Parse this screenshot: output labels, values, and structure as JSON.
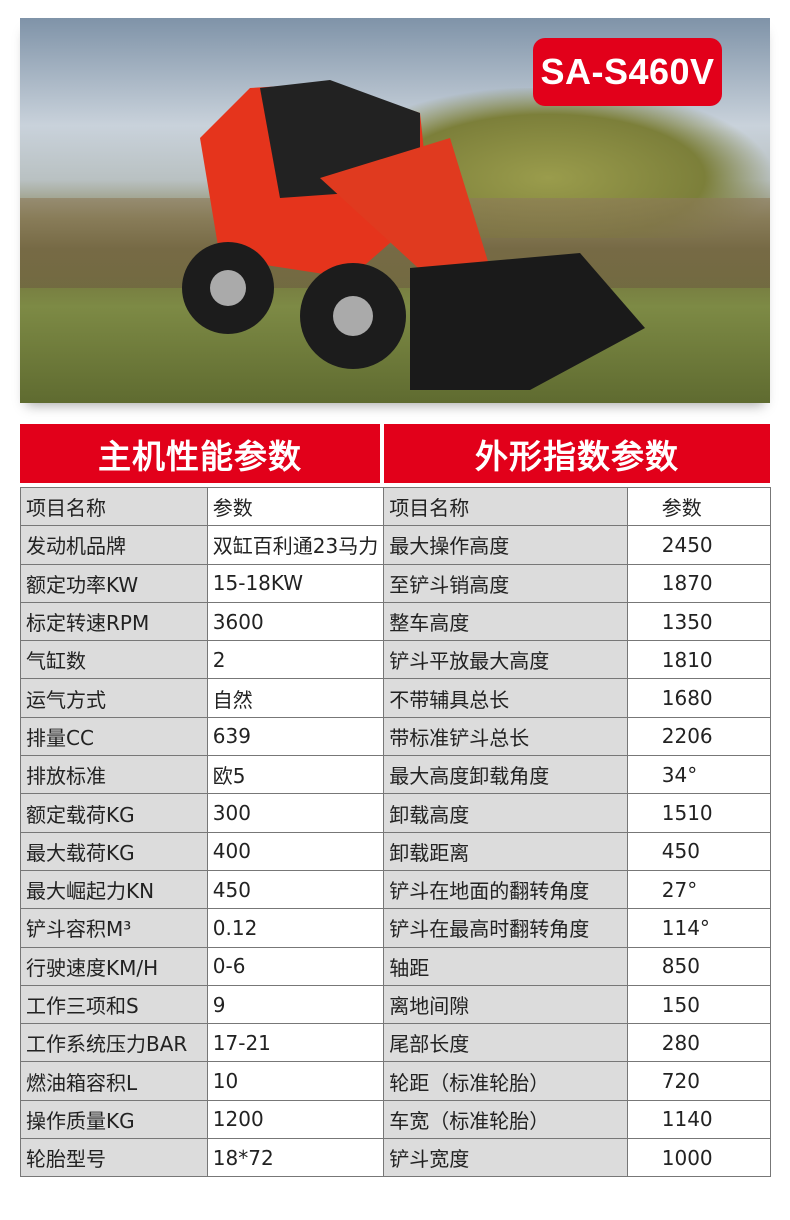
{
  "model_badge": "SA-S460V",
  "headers": {
    "left": "主机性能参数",
    "right": "外形指数参数"
  },
  "rows": [
    [
      "项目名称",
      "参数",
      "项目名称",
      "参数"
    ],
    [
      "发动机品牌",
      "双缸百利通23马力",
      "最大操作高度",
      "2450"
    ],
    [
      "额定功率KW",
      "15-18KW",
      "至铲斗销高度",
      "1870"
    ],
    [
      "标定转速RPM",
      "3600",
      "整车高度",
      "1350"
    ],
    [
      "气缸数",
      "2",
      "铲斗平放最大高度",
      "1810"
    ],
    [
      "运气方式",
      "自然",
      "不带辅具总长",
      "1680"
    ],
    [
      "排量CC",
      "639",
      "带标准铲斗总长",
      "2206"
    ],
    [
      "排放标准",
      "欧5",
      "最大高度卸载角度",
      "34°"
    ],
    [
      "额定载荷KG",
      "300",
      "卸载高度",
      "1510"
    ],
    [
      "最大载荷KG",
      "400",
      "卸载距离",
      "450"
    ],
    [
      "最大崛起力KN",
      "450",
      "铲斗在地面的翻转角度",
      "27°"
    ],
    [
      "铲斗容积M³",
      "0.12",
      "铲斗在最高时翻转角度",
      "114°"
    ],
    [
      "行驶速度KM/H",
      "0-6",
      "轴距",
      "850"
    ],
    [
      "工作三项和S",
      "9",
      "离地间隙",
      "150"
    ],
    [
      "工作系统压力BAR",
      "17-21",
      "尾部长度",
      "280"
    ],
    [
      "燃油箱容积L",
      "10",
      "轮距（标准轮胎）",
      "720"
    ],
    [
      "操作质量KG",
      "1200",
      "车宽（标准轮胎）",
      "1140"
    ],
    [
      "轮胎型号",
      "18*72",
      "铲斗宽度",
      "1000"
    ]
  ],
  "colors": {
    "accent": "#e2001a",
    "name_cell": "#dcdcdc"
  }
}
